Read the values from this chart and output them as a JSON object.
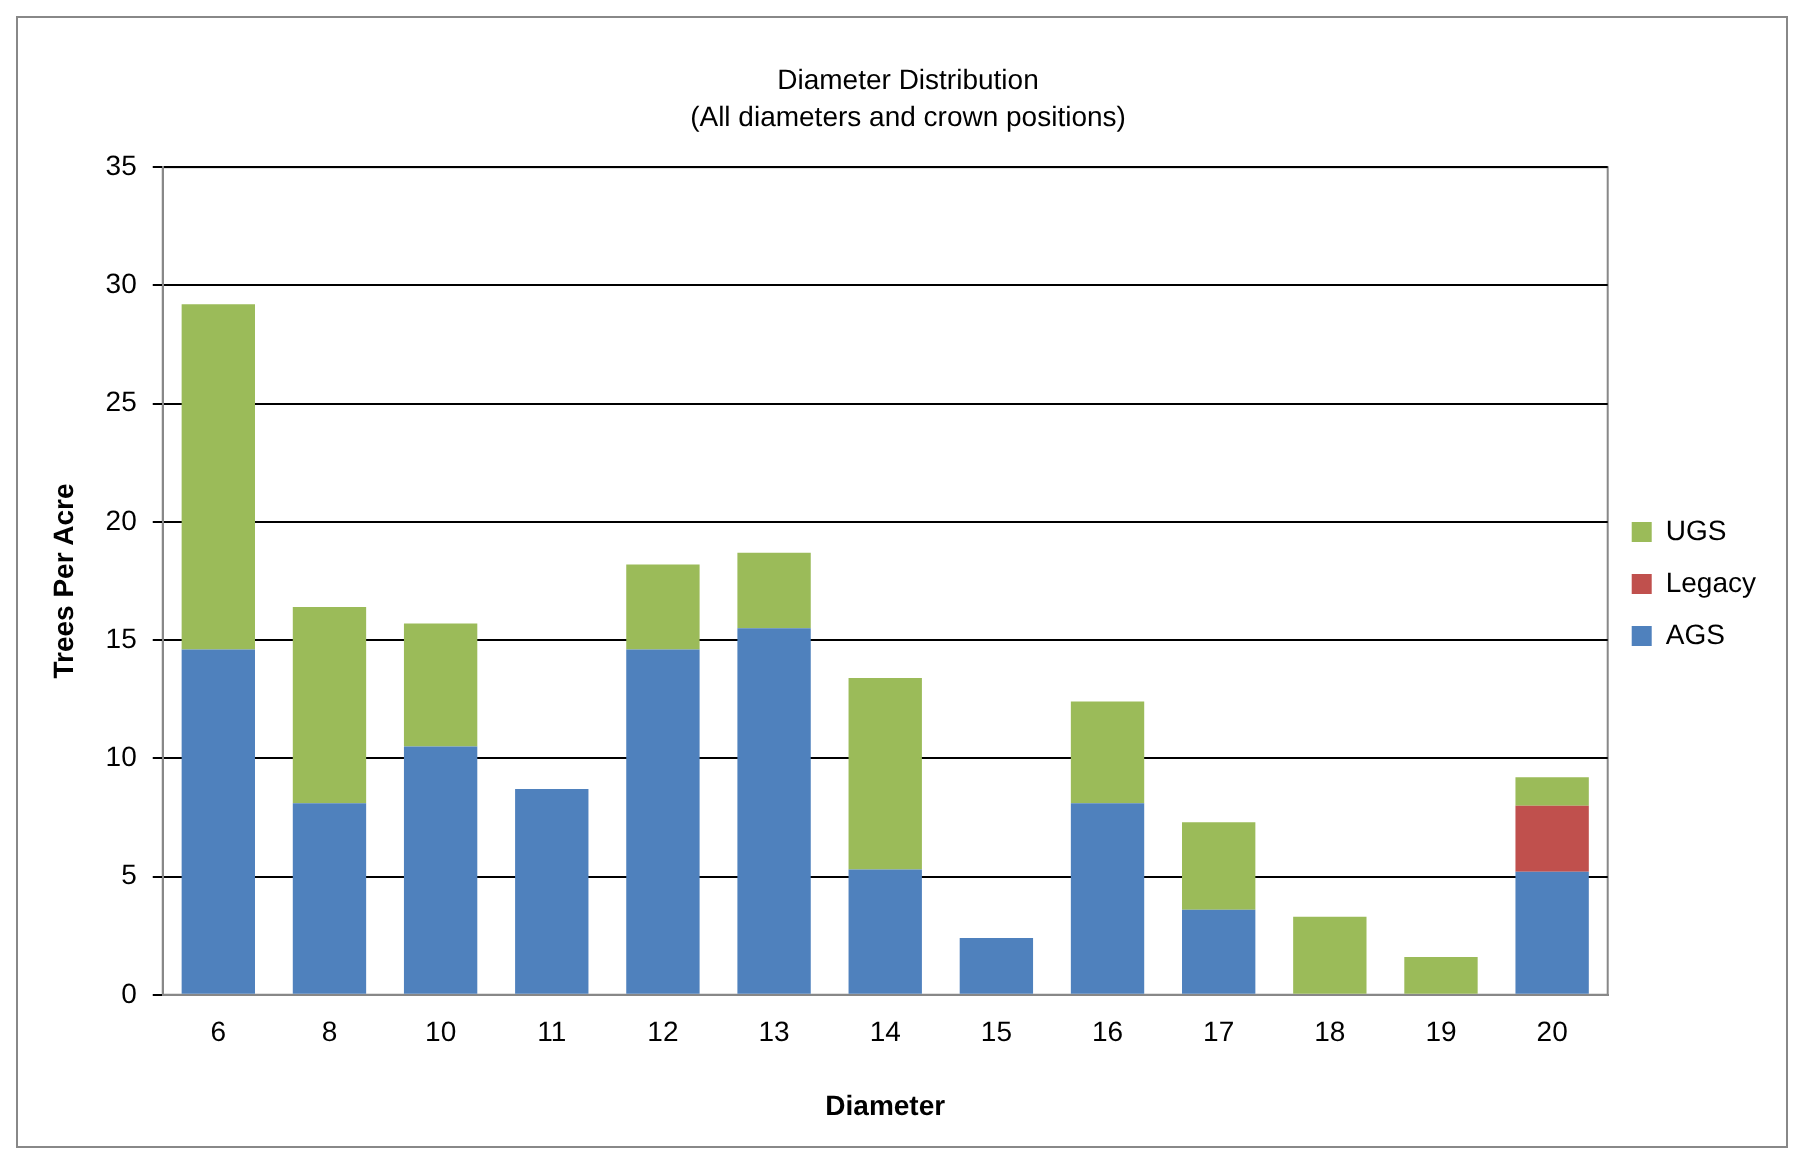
{
  "chart_data": {
    "type": "bar",
    "title": "Diameter Distribution",
    "subtitle": "(All diameters and crown positions)",
    "xlabel": "Diameter",
    "ylabel": "Trees Per Acre",
    "categories": [
      "6",
      "8",
      "10",
      "11",
      "12",
      "13",
      "14",
      "15",
      "16",
      "17",
      "18",
      "19",
      "20"
    ],
    "series": [
      {
        "name": "AGS",
        "color": "#4f81bd",
        "values": [
          14.6,
          8.1,
          10.5,
          8.7,
          14.6,
          15.5,
          5.3,
          2.4,
          8.1,
          3.6,
          0,
          0,
          5.2
        ]
      },
      {
        "name": "Legacy",
        "color": "#c0504d",
        "values": [
          0,
          0,
          0,
          0,
          0,
          0,
          0,
          0,
          0,
          0,
          0,
          0,
          2.8
        ]
      },
      {
        "name": "UGS",
        "color": "#9bbb59",
        "values": [
          14.6,
          8.3,
          5.2,
          0,
          3.6,
          3.2,
          8.1,
          0,
          4.3,
          3.7,
          3.3,
          1.6,
          1.2
        ]
      }
    ],
    "stacked": true,
    "ylim": [
      0,
      35
    ],
    "yticks": [
      0,
      5,
      10,
      15,
      20,
      25,
      30,
      35
    ],
    "grid": "y",
    "legend": "right"
  }
}
